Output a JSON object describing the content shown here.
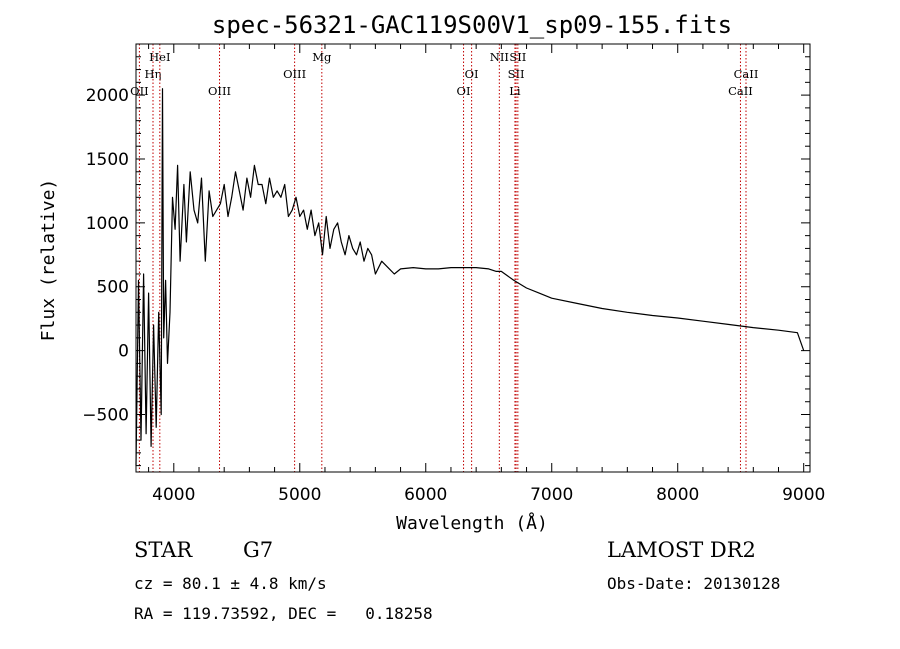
{
  "chart_data": {
    "type": "line",
    "title": "spec-56321-GAC119S00V1_sp09-155.fits",
    "xlabel": "Wavelength (Å)",
    "ylabel": "Flux (relative)",
    "xlim": [
      3700,
      9050
    ],
    "ylim": [
      -950,
      2400
    ],
    "xticks": [
      4000,
      5000,
      6000,
      7000,
      8000,
      9000
    ],
    "xtick_labels": [
      "4000",
      "5000",
      "6000",
      "7000",
      "8000",
      "9000"
    ],
    "yticks": [
      -500,
      0,
      500,
      1000,
      1500,
      2000
    ],
    "ytick_labels": [
      "−500",
      "0",
      "500",
      "1000",
      "1500",
      "2000"
    ],
    "grid": false,
    "series": [
      {
        "x": [
          3700,
          3720,
          3740,
          3760,
          3780,
          3800,
          3820,
          3840,
          3860,
          3880,
          3900,
          3910,
          3920,
          3935,
          3950,
          3970,
          3990,
          4010,
          4030,
          4050,
          4080,
          4100,
          4130,
          4160,
          4190,
          4220,
          4250,
          4280,
          4310,
          4340,
          4370,
          4400,
          4430,
          4460,
          4490,
          4520,
          4550,
          4580,
          4610,
          4640,
          4670,
          4700,
          4730,
          4760,
          4790,
          4820,
          4850,
          4880,
          4910,
          4940,
          4970,
          5000,
          5030,
          5060,
          5090,
          5120,
          5150,
          5180,
          5210,
          5240,
          5270,
          5300,
          5330,
          5360,
          5390,
          5420,
          5450,
          5480,
          5510,
          5540,
          5570,
          5600,
          5650,
          5700,
          5750,
          5800,
          5900,
          6000,
          6100,
          6200,
          6300,
          6400,
          6500,
          6560,
          6600,
          6700,
          6800,
          6900,
          7000,
          7200,
          7400,
          7600,
          7800,
          8000,
          8200,
          8400,
          8600,
          8800,
          8950,
          9000
        ],
        "y": [
          -900,
          550,
          -700,
          600,
          -650,
          450,
          -750,
          200,
          -600,
          300,
          -500,
          2050,
          100,
          550,
          -100,
          300,
          1200,
          950,
          1450,
          700,
          1300,
          850,
          1400,
          1100,
          1000,
          1350,
          700,
          1250,
          1050,
          1100,
          1150,
          1300,
          1050,
          1200,
          1400,
          1250,
          1100,
          1350,
          1200,
          1450,
          1300,
          1300,
          1150,
          1350,
          1200,
          1250,
          1200,
          1300,
          1050,
          1100,
          1200,
          1050,
          1100,
          950,
          1100,
          900,
          1000,
          750,
          1050,
          800,
          950,
          1000,
          850,
          750,
          900,
          800,
          750,
          850,
          700,
          800,
          750,
          600,
          700,
          650,
          600,
          640,
          650,
          640,
          640,
          650,
          650,
          650,
          640,
          620,
          620,
          550,
          490,
          450,
          410,
          370,
          330,
          300,
          275,
          255,
          230,
          205,
          180,
          160,
          140,
          0
        ]
      }
    ],
    "line_markers": [
      {
        "label": "Hη",
        "wavelength": 3835,
        "row": 2
      },
      {
        "label": "OII",
        "wavelength": 3727,
        "row": 3
      },
      {
        "label": "HeI",
        "wavelength": 3889,
        "row": 1
      },
      {
        "label": "OIII",
        "wavelength": 4363,
        "row": 3
      },
      {
        "label": "OIII",
        "wavelength": 4959,
        "row": 2
      },
      {
        "label": "Mg",
        "wavelength": 5175,
        "row": 1
      },
      {
        "label": "OI",
        "wavelength": 6300,
        "row": 3
      },
      {
        "label": "OI",
        "wavelength": 6364,
        "row": 2
      },
      {
        "label": "NII",
        "wavelength": 6584,
        "row": 1
      },
      {
        "label": "SII",
        "wavelength": 6717,
        "row": 2
      },
      {
        "label": "SII",
        "wavelength": 6731,
        "row": 1
      },
      {
        "label": "Li",
        "wavelength": 6708,
        "row": 3
      },
      {
        "label": "CaII",
        "wavelength": 8542,
        "row": 2
      },
      {
        "label": "CaII",
        "wavelength": 8498,
        "row": 3
      }
    ]
  },
  "info": {
    "class_label": "STAR",
    "subclass": "G7",
    "survey": "LAMOST DR2",
    "cz_line": "cz = 80.1 ± 4.8 km/s",
    "obs_date_line": "Obs-Date: 20130128",
    "radec_line": "RA = 119.73592, DEC =   0.18258"
  },
  "colors": {
    "spectrum": "#000000",
    "marker_line": "#c00000",
    "text": "#000000"
  }
}
